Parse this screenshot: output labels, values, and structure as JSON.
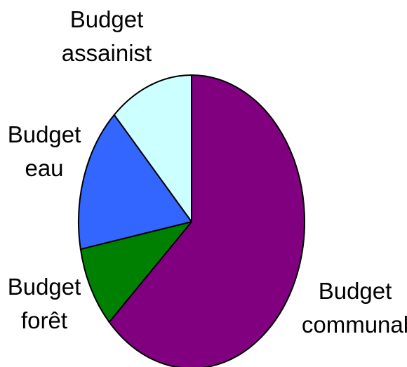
{
  "chart_data": {
    "type": "pie",
    "title": "",
    "start": "top, clockwise",
    "slices": [
      {
        "label_lines": [
          "Budget",
          "communal"
        ],
        "value": 63,
        "color": "#800080"
      },
      {
        "label_lines": [
          "Budget",
          "forêt"
        ],
        "value": 9,
        "color": "#008000"
      },
      {
        "label_lines": [
          "Budget",
          "eau"
        ],
        "value": 16,
        "color": "#3366FF"
      },
      {
        "label_lines": [
          "Budget",
          "assainist"
        ],
        "value": 12,
        "color": "#CCFFFF"
      }
    ],
    "legend": "none"
  }
}
